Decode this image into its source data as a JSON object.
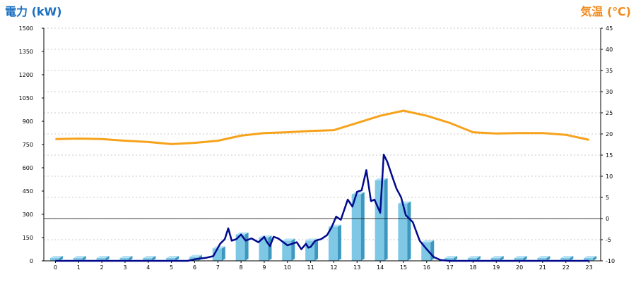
{
  "colors": {
    "power_title": "#1a6fbf",
    "temp_title": "#f08a1c",
    "bar_face": "#7ec8e6",
    "bar_side": "#3d98bf",
    "bar_top": "#b6e2f4",
    "power_line": "#000a8c",
    "temp_line": "#f7a21b",
    "grid": "#b8b8b8"
  },
  "chart_data": {
    "type": "bar",
    "title_left": "電力 (kW)",
    "title_right": "気温 (℃)",
    "x_ticks": [
      "0",
      "1",
      "2",
      "3",
      "4",
      "5",
      "6",
      "7",
      "8",
      "9",
      "10",
      "11",
      "12",
      "13",
      "14",
      "15",
      "16",
      "17",
      "18",
      "19",
      "20",
      "21",
      "22",
      "23"
    ],
    "y_left": {
      "min": 0,
      "max": 1500,
      "ticks": [
        "0",
        "150",
        "300",
        "450",
        "600",
        "750",
        "900",
        "1050",
        "1200",
        "1350",
        "1500"
      ]
    },
    "y_right": {
      "min": -10,
      "max": 45,
      "ticks": [
        "-10",
        "-5",
        "0",
        "5",
        "10",
        "15",
        "20",
        "25",
        "30",
        "35",
        "40",
        "45"
      ]
    },
    "series": [
      {
        "type": "bar",
        "axis": "left",
        "categories": [
          "0",
          "1",
          "2",
          "3",
          "4",
          "5",
          "6",
          "7",
          "8",
          "9",
          "10",
          "11",
          "12",
          "13",
          "14",
          "15",
          "16",
          "17",
          "18",
          "19",
          "20",
          "21",
          "22",
          "23"
        ],
        "values": [
          18,
          18,
          18,
          18,
          18,
          18,
          25,
          80,
          170,
          150,
          130,
          130,
          220,
          430,
          520,
          370,
          120,
          18,
          18,
          18,
          18,
          18,
          18,
          18
        ]
      },
      {
        "type": "line",
        "axis": "left",
        "x": [
          0,
          1,
          2,
          3,
          4,
          5,
          5.7,
          6,
          6.5,
          6.8,
          7.1,
          7.3,
          7.45,
          7.6,
          7.8,
          8,
          8.2,
          8.45,
          8.75,
          8.9,
          9,
          9.1,
          9.25,
          9.4,
          9.6,
          10,
          10.2,
          10.4,
          10.6,
          10.8,
          10.9,
          11,
          11.2,
          11.45,
          11.7,
          11.9,
          12.1,
          12.3,
          12.6,
          12.8,
          13,
          13.2,
          13.4,
          13.6,
          13.75,
          14,
          14.15,
          14.3,
          14.55,
          14.7,
          14.9,
          15.1,
          15.4,
          15.7,
          16,
          16.3,
          16.6,
          17,
          18,
          23
        ],
        "values": [
          0,
          0,
          0,
          0,
          0,
          0,
          0,
          10,
          20,
          30,
          110,
          140,
          210,
          130,
          140,
          170,
          130,
          145,
          120,
          140,
          155,
          125,
          95,
          155,
          145,
          100,
          110,
          120,
          75,
          110,
          85,
          90,
          130,
          140,
          165,
          215,
          285,
          265,
          395,
          350,
          445,
          455,
          585,
          385,
          395,
          310,
          685,
          640,
          530,
          465,
          410,
          295,
          250,
          130,
          75,
          25,
          5,
          0,
          0,
          0
        ]
      },
      {
        "type": "line",
        "axis": "right",
        "x": [
          0,
          1,
          2,
          3,
          4,
          5,
          6,
          7,
          8,
          9,
          10,
          11,
          12,
          13,
          14,
          15,
          16,
          17,
          18,
          19,
          20,
          21,
          22,
          23
        ],
        "values": [
          18.8,
          18.9,
          18.8,
          18.4,
          18.1,
          17.6,
          17.9,
          18.4,
          19.6,
          20.2,
          20.4,
          20.7,
          20.9,
          22.6,
          24.3,
          25.5,
          24.3,
          22.6,
          20.4,
          20.1,
          20.2,
          20.2,
          19.8,
          18.6
        ]
      }
    ],
    "grid": true,
    "reference_line": {
      "axis": "right",
      "value": 0
    }
  }
}
